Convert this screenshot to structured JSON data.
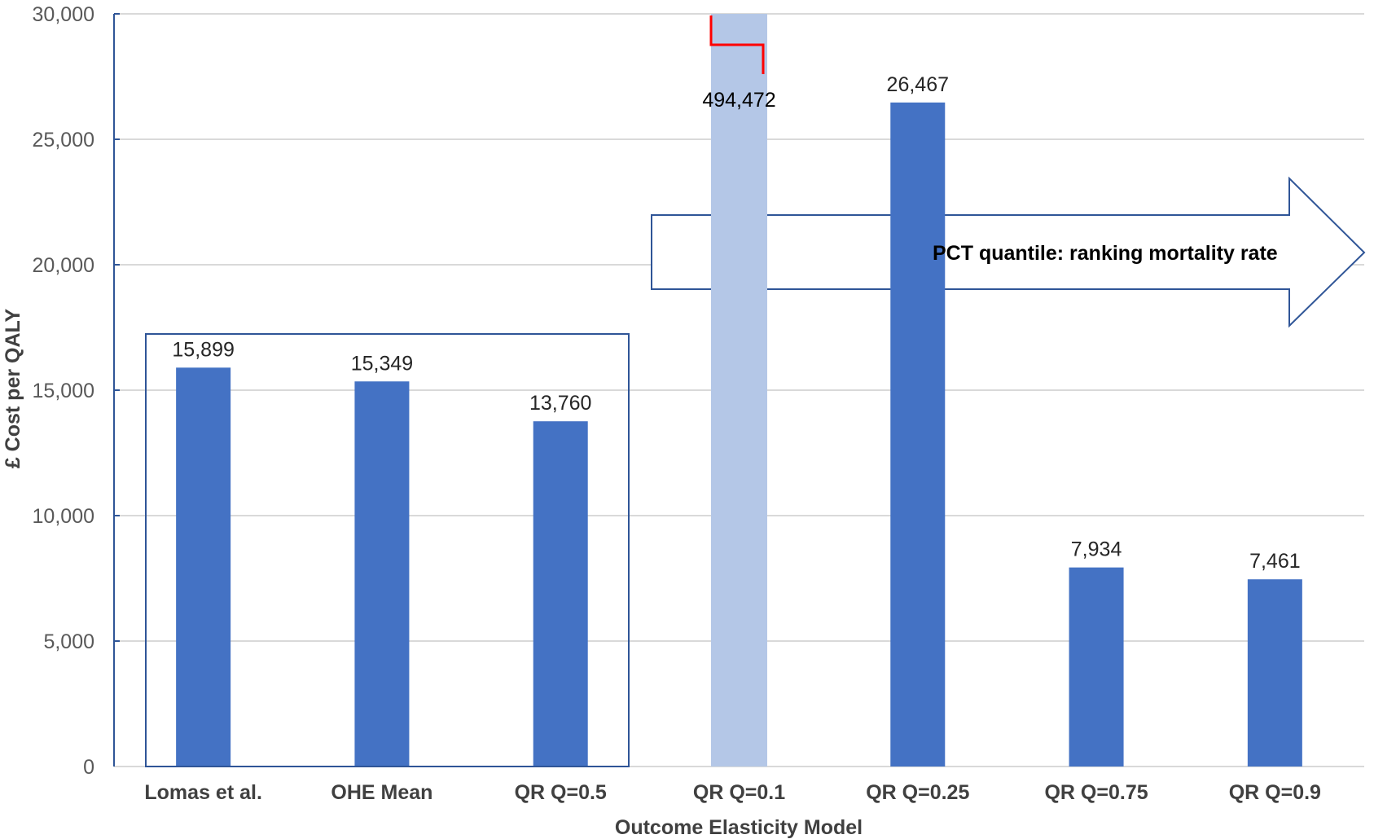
{
  "chart_data": {
    "type": "bar",
    "title": "",
    "xlabel": "Outcome Elasticity Model",
    "ylabel": "£ Cost per QALY",
    "ylim": [
      0,
      30000
    ],
    "yticks": [
      0,
      5000,
      10000,
      15000,
      20000,
      25000,
      30000
    ],
    "ytick_labels": [
      "0",
      "5,000",
      "10,000",
      "15,000",
      "20,000",
      "25,000",
      "30,000"
    ],
    "grid": true,
    "categories": [
      "Lomas et al.",
      "OHE Mean",
      "QR Q=0.5",
      "QR Q=0.1",
      "QR Q=0.25",
      "QR Q=0.75",
      "QR Q=0.9"
    ],
    "values": [
      15899,
      15349,
      13760,
      494472,
      26467,
      7934,
      7461
    ],
    "data_labels": [
      "15,899",
      "15,349",
      "13,760",
      "494,472",
      "26,467",
      "7,934",
      "7,461"
    ],
    "bar_styles": [
      "normal",
      "normal",
      "normal",
      "truncated-light",
      "normal",
      "normal",
      "normal"
    ],
    "annotations": [
      {
        "type": "box",
        "label": "",
        "groups": [
          "Lomas et al.",
          "OHE Mean",
          "QR Q=0.5"
        ]
      },
      {
        "type": "axis-break",
        "category": "QR Q=0.1",
        "color": "#FF0000"
      },
      {
        "type": "arrow",
        "label": "PCT quantile: ranking mortality rate",
        "direction": "right"
      }
    ],
    "legend": null
  },
  "colors": {
    "bar": "#4472C4",
    "bar_light": "#B4C7E7",
    "outline": "#2F5597",
    "grid": "#D9D9D9",
    "break": "#FF0000"
  }
}
